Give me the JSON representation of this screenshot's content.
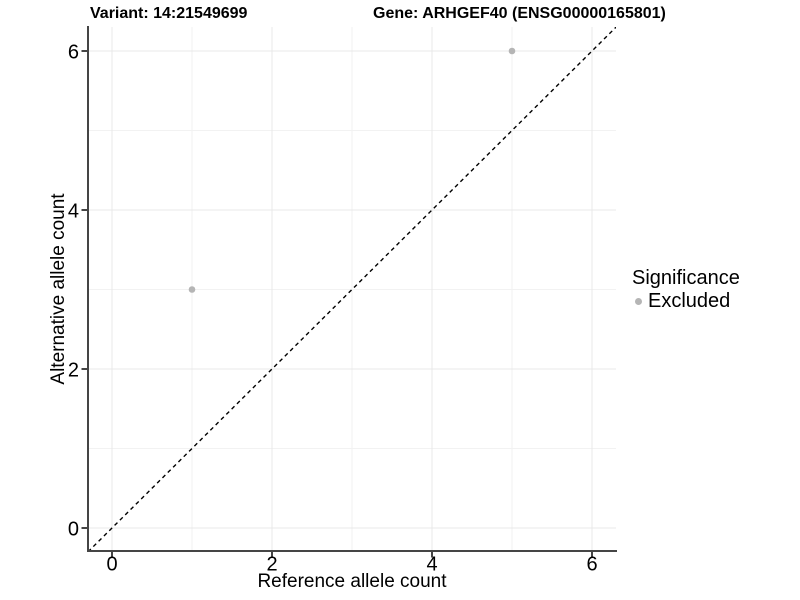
{
  "colors": {
    "point": "#b5b5b5",
    "axis": "#454545",
    "grid_major": "#e8e8e8",
    "grid_minor": "#f2f2f2",
    "identity_line": "#000000",
    "text": "#000000",
    "background": "#ffffff"
  },
  "chart_data": {
    "type": "scatter",
    "title_left": "Variant: 14:21549699",
    "title_right": "Gene: ARHGEF40 (ENSG00000165801)",
    "xlabel": "Reference allele count",
    "ylabel": "Alternative allele count",
    "xlim": [
      -0.3,
      6.3
    ],
    "ylim": [
      -0.3,
      6.3
    ],
    "x_ticks": [
      0,
      2,
      4,
      6
    ],
    "y_ticks": [
      0,
      2,
      4,
      6
    ],
    "x_minor": [
      1,
      3,
      5
    ],
    "y_minor": [
      1,
      3,
      5
    ],
    "grid": true,
    "identity_line": {
      "slope": 1,
      "intercept": 0,
      "style": "dashed"
    },
    "series": [
      {
        "name": "Excluded",
        "points": [
          {
            "x": 1,
            "y": 3
          },
          {
            "x": 5,
            "y": 6
          }
        ]
      }
    ],
    "legend": {
      "title": "Significance",
      "position": "right",
      "items": [
        {
          "label": "Excluded"
        }
      ]
    }
  }
}
